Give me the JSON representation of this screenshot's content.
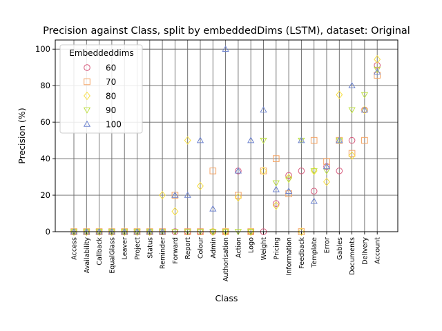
{
  "chart_data": {
    "type": "scatter",
    "title": "Precision against Class, split by embeddedDims (LSTM), dataset: Original",
    "xlabel": "Class",
    "ylabel": "Precision (%)",
    "ylim": [
      0,
      105
    ],
    "yticks": [
      0,
      20,
      40,
      60,
      80,
      100
    ],
    "grid": true,
    "legend_title": "Embeddeddims",
    "legend_position": "top-left",
    "categories": [
      "Access",
      "Availability",
      "Callback",
      "EqualGlass",
      "Leaver",
      "Project",
      "Status",
      "Reminder",
      "Forward",
      "Report",
      "Colour",
      "Admin",
      "Authorisation",
      "Action",
      "Logo",
      "Weight",
      "Pricing",
      "Information",
      "Feedback",
      "Template",
      "Error",
      "Gables",
      "Documents",
      "Delivery",
      "Account"
    ],
    "series": [
      {
        "name": "60",
        "marker": "circle",
        "color": "#d6577a",
        "values": [
          0,
          0,
          0,
          0,
          0,
          0,
          0,
          0,
          0,
          0,
          0,
          0,
          0,
          33.3,
          0,
          0,
          15.4,
          30.8,
          33.3,
          22.2,
          35.7,
          33.3,
          50,
          66.7,
          91.1
        ]
      },
      {
        "name": "70",
        "marker": "square",
        "color": "#f4a261",
        "values": [
          0,
          0,
          0,
          0,
          0,
          0,
          0,
          0,
          20,
          0,
          0,
          33.3,
          0,
          20,
          0,
          33.3,
          40,
          20.8,
          0,
          50,
          38.5,
          50,
          42.9,
          50,
          85.7
        ]
      },
      {
        "name": "80",
        "marker": "diamond",
        "color": "#f7de3f",
        "values": [
          0,
          0,
          0,
          0,
          0,
          0,
          0,
          20,
          11.1,
          50,
          25,
          0,
          0,
          18.8,
          0,
          33.3,
          14.3,
          29.4,
          0,
          33.3,
          27.3,
          75,
          41.7,
          66.7,
          94.4
        ]
      },
      {
        "name": "90",
        "marker": "triangle-down",
        "color": "#bde041",
        "values": [
          0,
          0,
          0,
          0,
          0,
          0,
          0,
          0,
          0,
          0,
          0,
          0,
          0,
          0,
          0,
          50,
          26.7,
          28.6,
          50,
          33.3,
          33.3,
          50,
          66.7,
          75,
          88.9
        ]
      },
      {
        "name": "100",
        "marker": "triangle-up",
        "color": "#6f84cf",
        "values": [
          0,
          0,
          0,
          0,
          0,
          0,
          0,
          0,
          20,
          20,
          50,
          12.5,
          100,
          33.3,
          50,
          66.7,
          23.1,
          22.2,
          50,
          16.7,
          35.7,
          50,
          80,
          66.7,
          87.5
        ]
      }
    ]
  }
}
